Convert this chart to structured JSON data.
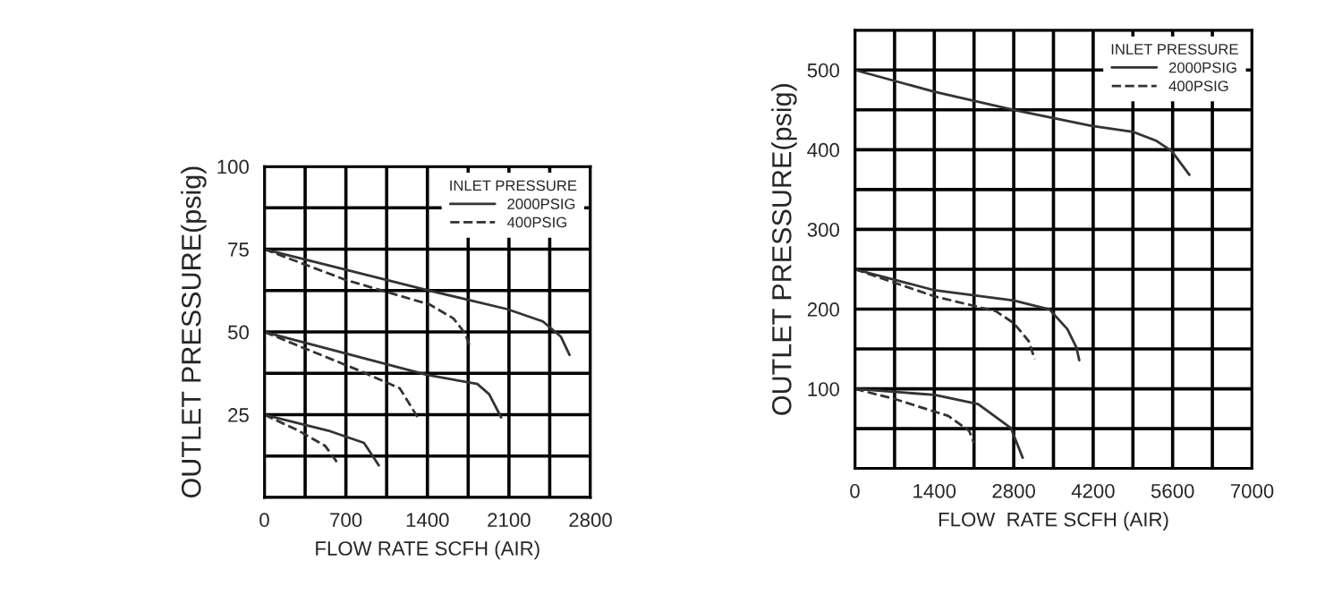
{
  "chart_data": [
    {
      "type": "line",
      "xlabel": "FLOW RATE SCFH (AIR)",
      "ylabel": "OUTLET PRESSURE(psig)",
      "legend_title": "INLET PRESSURE",
      "legend": "top right",
      "grid": true,
      "marker": "none",
      "xlim": [
        0,
        2800
      ],
      "ylim": [
        0,
        100
      ],
      "xticks": [
        0,
        {
          "value": 350,
          "label": null
        },
        700,
        {
          "value": 1050,
          "label": null
        },
        1400,
        {
          "value": 1750,
          "label": null
        },
        2100,
        {
          "value": 2450,
          "label": null
        },
        2800
      ],
      "yticks": [
        {
          "value": 0,
          "label": null
        },
        {
          "value": 12.5,
          "label": null
        },
        25,
        {
          "value": 37.5,
          "label": null
        },
        50,
        {
          "value": 62.5,
          "label": null
        },
        75,
        {
          "value": 87.5,
          "label": null
        },
        100
      ],
      "series": [
        {
          "name": "2000PSIG",
          "color": "#333333",
          "line_style": "solid",
          "x": [
            0,
            1393,
            2084,
            2391,
            2545,
            2620
          ],
          "values": [
            75,
            62.7,
            56.9,
            53.2,
            48.6,
            43.1
          ]
        },
        {
          "name": "400PSIG",
          "color": "#333333",
          "line_style": "dashed",
          "x": [
            0,
            700,
            1418,
            1623,
            1725,
            1761
          ],
          "values": [
            75,
            65.7,
            58.3,
            54.1,
            49.5,
            45.9
          ]
        },
        {
          "color": "#333333",
          "line_style": "solid",
          "x": [
            0,
            1400,
            1828,
            1930,
            2033
          ],
          "values": [
            50,
            37,
            34.3,
            31.2,
            24.2
          ]
        },
        {
          "color": "#333333",
          "line_style": "dashed",
          "x": [
            0,
            804,
            1162,
            1320
          ],
          "values": [
            50,
            38.5,
            33,
            24
          ]
        },
        {
          "color": "#333333",
          "line_style": "solid",
          "x": [
            0,
            548,
            855,
            983
          ],
          "values": [
            25,
            20.2,
            16.5,
            9.7
          ]
        },
        {
          "color": "#333333",
          "line_style": "dashed",
          "x": [
            0,
            292,
            522,
            625
          ],
          "values": [
            25,
            20.2,
            15.6,
            10.6
          ]
        }
      ]
    },
    {
      "type": "line",
      "xlabel": "FLOW  RATE SCFH (AIR)",
      "ylabel": "OUTLET PRESSURE(psig)",
      "legend_title": "INLET PRESSURE",
      "legend": "top right",
      "grid": true,
      "marker": "none",
      "xlim": [
        0,
        7000
      ],
      "ylim": [
        0,
        550
      ],
      "xticks": [
        0,
        {
          "value": 700,
          "label": null
        },
        1400,
        {
          "value": 2100,
          "label": null
        },
        2800,
        {
          "value": 3500,
          "label": null
        },
        4200,
        {
          "value": 4900,
          "label": null
        },
        5600,
        {
          "value": 6300,
          "label": null
        },
        7000
      ],
      "yticks": [
        {
          "value": 0,
          "label": null
        },
        {
          "value": 50,
          "label": null
        },
        100,
        {
          "value": 150,
          "label": null
        },
        200,
        {
          "value": 250,
          "label": null
        },
        300,
        {
          "value": 350,
          "label": null
        },
        400,
        {
          "value": 450,
          "label": null
        },
        500,
        {
          "value": 550,
          "label": null
        }
      ],
      "series": [
        {
          "name": "2000PSIG",
          "color": "#333333",
          "line_style": "solid",
          "x": [
            0,
            1406,
            2801,
            4165,
            4899,
            5318,
            5580,
            5895
          ],
          "values": [
            500,
            472.6,
            450,
            430,
            422.5,
            411,
            398.5,
            368.5
          ]
        },
        {
          "name": "400PSIG",
          "color": "#333333",
          "line_style": "dashed",
          "x": [
            0,
            1406,
            2486,
            2801,
            3063,
            3168
          ],
          "values": [
            250,
            216,
            197.4,
            182.4,
            159.9,
            137.3
          ]
        },
        {
          "color": "#333333",
          "line_style": "solid",
          "x": [
            0,
            1406,
            2801,
            3430,
            3745,
            3902,
            3955
          ],
          "values": [
            250,
            223.6,
            210.9,
            199.6,
            174.9,
            152.3,
            135.8
          ]
        },
        {
          "color": "#333333",
          "line_style": "solid",
          "x": [
            0,
            1406,
            2171,
            2748,
            2958
          ],
          "values": [
            100,
            92.3,
            81,
            51,
            13.5
          ]
        },
        {
          "color": "#333333",
          "line_style": "dashed",
          "x": [
            0,
            703,
            1647,
            2014,
            2098
          ],
          "values": [
            100,
            87.2,
            66,
            47.3,
            32.3
          ]
        }
      ]
    }
  ]
}
